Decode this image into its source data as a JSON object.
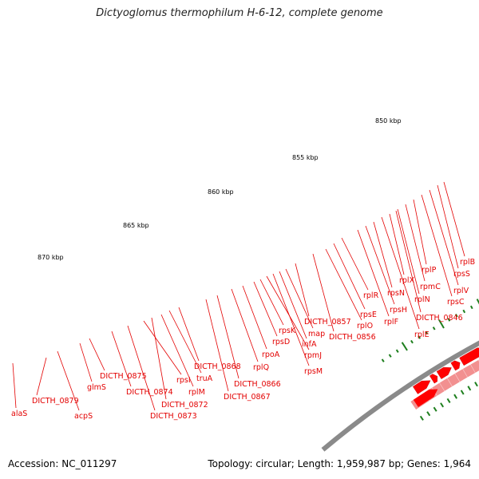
{
  "header": {
    "title": "Dictyoglomus thermophilum H-6-12, complete genome"
  },
  "footer": {
    "accession": "Accession: NC_011297",
    "summary": "Topology: circular; Length: 1,959,987 bp; Genes: 1,964"
  },
  "colors": {
    "backbone": "#8a8a8a",
    "gene_strand": "#ff0000",
    "pale_feature": "#f29090",
    "label": "#e30000",
    "tick": "#1e7f1e"
  },
  "kbp_ticks": [
    "850 kbp",
    "855 kbp",
    "860 kbp",
    "865 kbp",
    "870 kbp"
  ],
  "gene_labels": [
    "alaS",
    "DICTH_0879",
    "acpS",
    "glmS",
    "DICTH_0875",
    "DICTH_0874",
    "DICTH_0873",
    "rpsI",
    "DICTH_0872",
    "rplM",
    "truA",
    "DICTH_0868",
    "DICTH_0867",
    "DICTH_0866",
    "rplQ",
    "rpoA",
    "rpsD",
    "rpsK",
    "rpmJ",
    "rpsM",
    "infA",
    "map",
    "DICTH_0857",
    "DICTH_0856",
    "rplO",
    "rpsE",
    "rplR",
    "rplF",
    "rpsH",
    "rpsN",
    "rplE",
    "rplX",
    "rplN",
    "rpmC",
    "rplP",
    "DICTH_0846",
    "rpsC",
    "rplV",
    "rpsS",
    "rplB"
  ]
}
